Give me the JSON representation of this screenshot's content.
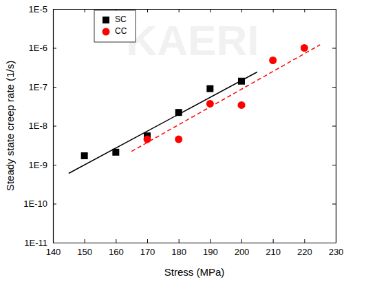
{
  "chart_data": {
    "type": "scatter",
    "x_label": "Stress (MPa)",
    "y_label": "Steady state creep rate (1/s)",
    "annotations": [
      "KAERI"
    ],
    "log": "y",
    "grid": false,
    "legend": "top-left",
    "xlim": [
      140,
      230
    ],
    "xticks": [
      140,
      150,
      160,
      170,
      180,
      190,
      200,
      210,
      220,
      230
    ],
    "ylim": [
      1e-11,
      1e-05
    ],
    "yticks": [
      {
        "value": 1e-11,
        "label": "1E-11"
      },
      {
        "value": 1e-10,
        "label": "1E-10"
      },
      {
        "value": 1e-09,
        "label": "1E-9"
      },
      {
        "value": 1e-08,
        "label": "1E-8"
      },
      {
        "value": 1e-07,
        "label": "1E-7"
      },
      {
        "value": 1e-06,
        "label": "1E-6"
      },
      {
        "value": 1e-05,
        "label": "1E-5"
      }
    ],
    "series": [
      {
        "name": "SC",
        "type": "scatter",
        "marker": "square",
        "color": "#000000",
        "x": [
          150,
          160,
          170,
          180,
          190,
          200
        ],
        "values": [
          1.7e-09,
          2.1e-09,
          5.5e-09,
          2.2e-08,
          9e-08,
          1.4e-07
        ]
      },
      {
        "name": "CC",
        "type": "scatter",
        "marker": "circle",
        "color": "#ff0000",
        "x": [
          170,
          180,
          190,
          200,
          210,
          220
        ],
        "values": [
          4.5e-09,
          4.5e-09,
          3.7e-08,
          3.4e-08,
          4.8e-07,
          1e-06
        ]
      },
      {
        "type": "line",
        "line_style": "solid",
        "color": "#000000",
        "x": [
          145,
          205
        ],
        "values": [
          6e-10,
          2.4e-07
        ]
      },
      {
        "type": "line",
        "line_style": "dashed",
        "color": "#ff0000",
        "x": [
          165,
          225
        ],
        "values": [
          2.2e-09,
          1.2e-06
        ]
      }
    ]
  }
}
